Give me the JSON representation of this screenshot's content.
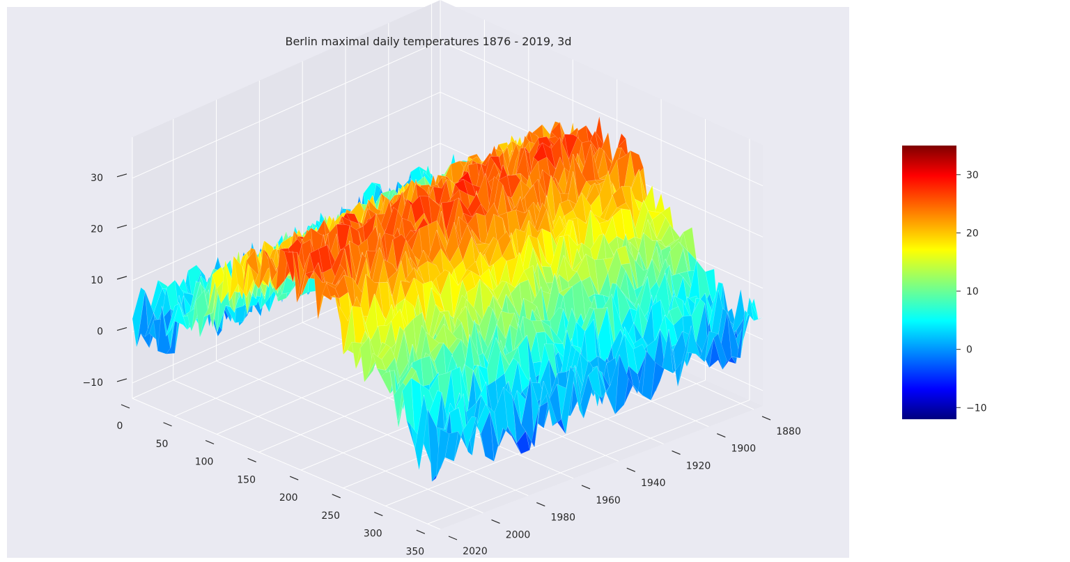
{
  "figure": {
    "background": "#ffffff",
    "panel_color": "#eaeaf2",
    "pane_color": "#e4e4ec",
    "grid_color": "#ffffff"
  },
  "chart_data": {
    "type": "surface3d",
    "title": "Berlin maximal daily temperatures 1876 - 2019, 3d",
    "xlabel": "",
    "ylabel": "",
    "zlabel": "",
    "grid": true,
    "colormap": "jet",
    "x_axis": {
      "range": [
        0,
        365
      ],
      "ticks": [
        "0",
        "50",
        "100",
        "150",
        "200",
        "250",
        "300",
        "350"
      ]
    },
    "y_axis": {
      "range": [
        1876,
        2019
      ],
      "ticks": [
        "1880",
        "1900",
        "1920",
        "1940",
        "1960",
        "1980",
        "2000",
        "2020"
      ]
    },
    "z_axis": {
      "range": [
        -13,
        38
      ],
      "ticks": [
        "−10",
        "0",
        "10",
        "20",
        "30"
      ]
    },
    "colorbar": {
      "range": [
        -12,
        35
      ],
      "ticks": [
        "−10",
        "0",
        "10",
        "20",
        "30"
      ],
      "placement": "right"
    },
    "seasonal_profile": {
      "day_of_year": [
        0,
        30,
        60,
        90,
        120,
        150,
        180,
        210,
        240,
        270,
        300,
        330,
        365
      ],
      "mean_max_temp": [
        1.5,
        3,
        7.5,
        13,
        19,
        22.5,
        24.5,
        24,
        19.5,
        14,
        8.5,
        4.5,
        1.5
      ]
    }
  }
}
